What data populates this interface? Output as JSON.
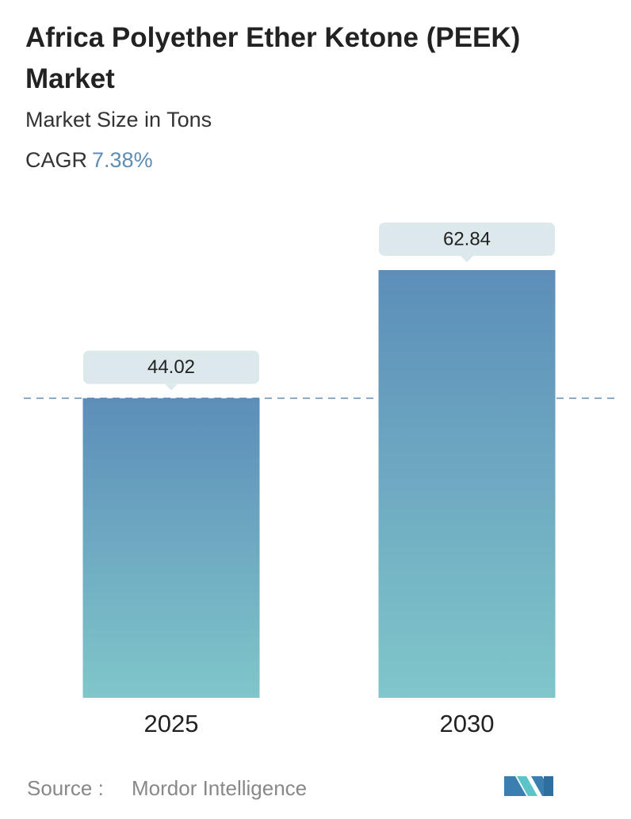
{
  "chart_data": {
    "type": "bar",
    "title": "Africa Polyether Ether Ketone (PEEK) Market",
    "subtitle": "Market Size in Tons",
    "cagr_label": "CAGR",
    "cagr_value": "7.38%",
    "categories": [
      "2025",
      "2030"
    ],
    "values": [
      44.02,
      62.84
    ],
    "gradient": [
      "#5c8eb9",
      "#80c6ca"
    ],
    "source_label": "Source :",
    "source": "Mordor Intelligence"
  }
}
